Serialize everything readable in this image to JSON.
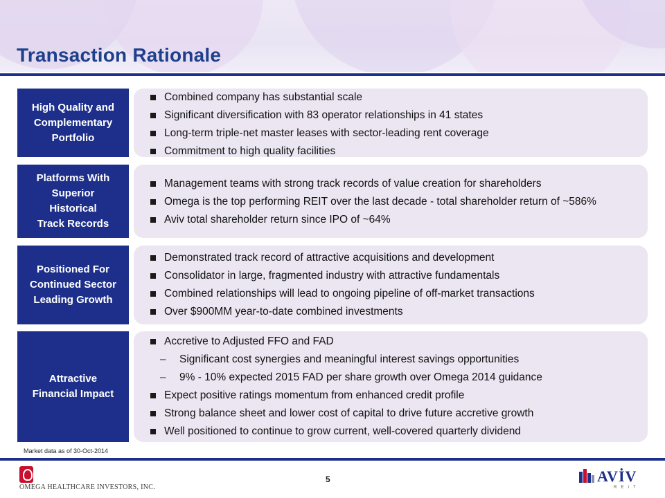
{
  "title": "Transaction Rationale",
  "sections": [
    {
      "label": "High Quality and\nComplementary\nPortfolio",
      "bullets": [
        "Combined company has substantial scale",
        "Significant diversification with 83 operator relationships in 41 states",
        "Long-term triple-net master leases with sector-leading rent coverage",
        "Commitment to high quality facilities"
      ]
    },
    {
      "label": "Platforms With\nSuperior\nHistorical\nTrack Records",
      "bullets": [
        "Management teams with strong track records of value creation for shareholders",
        "Omega is the top performing REIT over the last decade - total shareholder return of ~586%",
        "Aviv total shareholder return since IPO of ~64%"
      ]
    },
    {
      "label": "Positioned For\nContinued Sector\nLeading Growth",
      "bullets": [
        "Demonstrated track record of attractive acquisitions and development",
        "Consolidator in large, fragmented industry with attractive fundamentals",
        "Combined relationships will lead to ongoing pipeline of off-market transactions",
        "Over $900MM year-to-date combined investments"
      ]
    },
    {
      "label": "Attractive\nFinancial Impact",
      "bullets": [
        "Accretive to Adjusted FFO and FAD",
        "Significant cost synergies and meaningful interest savings opportunities",
        "9% - 10% expected 2015 FAD per share growth over Omega 2014 guidance",
        "Expect positive ratings momentum from enhanced credit profile",
        "Strong balance sheet and lower cost of capital to drive future accretive growth",
        "Well positioned to continue to grow current, well-covered quarterly dividend"
      ]
    }
  ],
  "footnote": "Market data as of 30-Oct-2014",
  "page_number": "5",
  "logos": {
    "omega_name": "OMEGA HEALTHCARE INVESTORS, INC.",
    "aviv_word": "AVİV",
    "aviv_sub": "REIT"
  },
  "colors": {
    "title": "#1e3f8c",
    "navy": "#1d2f8a",
    "panel": "#ebe6f2",
    "omega_red": "#c8102e"
  }
}
